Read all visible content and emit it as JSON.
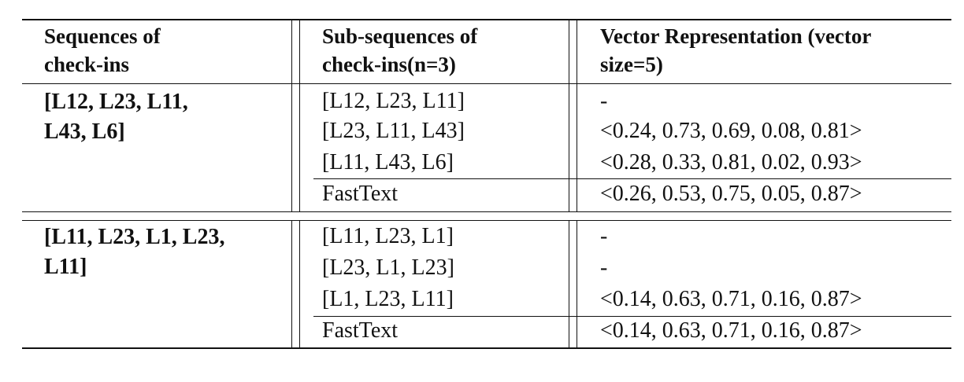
{
  "table": {
    "headers": [
      [
        "Sequences of",
        "check-ins"
      ],
      [
        "Sub-sequences of",
        "check-ins(n=3)"
      ],
      [
        "Vector Representation (vector",
        "size=5)"
      ]
    ],
    "groups": [
      {
        "sequence_lines": [
          "[L12, L23, L11,",
          "L43, L6]"
        ],
        "subsequences": [
          "[L12, L23, L11]",
          "[L23, L11, L43]",
          "[L11, L43, L6]"
        ],
        "vectors": [
          "-",
          "<0.24, 0.73, 0.69, 0.08, 0.81>",
          "<0.28, 0.33, 0.81, 0.02, 0.93>"
        ],
        "fasttext_label": "FastText",
        "fasttext_vector": "<0.26, 0.53, 0.75, 0.05, 0.87>"
      },
      {
        "sequence_lines": [
          "[L11, L23, L1, L23,",
          "L11]"
        ],
        "subsequences": [
          "[L11, L23, L1]",
          "[L23, L1, L23]",
          "[L1, L23, L11]"
        ],
        "vectors": [
          "-",
          "-",
          "<0.14, 0.63, 0.71, 0.16, 0.87>"
        ],
        "fasttext_label": "FastText",
        "fasttext_vector": "<0.14, 0.63, 0.71, 0.16, 0.87>"
      }
    ]
  }
}
